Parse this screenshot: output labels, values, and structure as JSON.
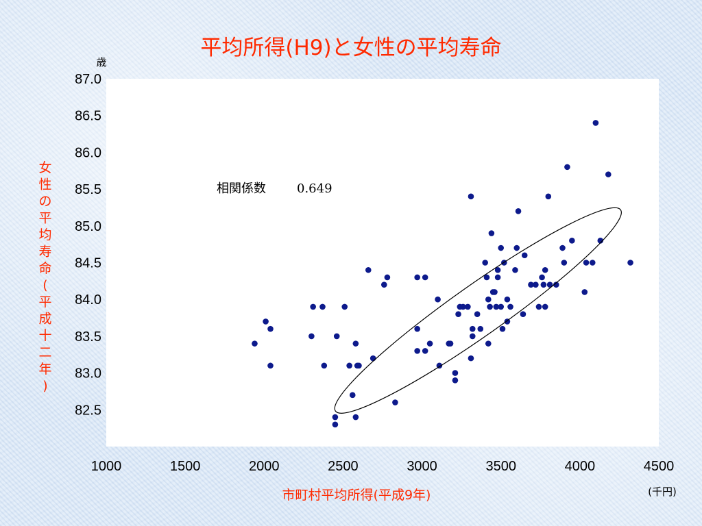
{
  "chart_data": {
    "type": "scatter",
    "title": "平均所得(H9)と女性の平均寿命",
    "xlabel": "市町村平均所得(平成9年)",
    "ylabel": "女性の平均寿命(平成十二年)",
    "x_unit": "(千円)",
    "y_unit": "歳",
    "xlim": [
      1000,
      4500
    ],
    "ylim": [
      82.0,
      87.0
    ],
    "xticks": [
      "1000",
      "1500",
      "2000",
      "2500",
      "3000",
      "3500",
      "4000",
      "4500"
    ],
    "yticks": [
      "82.5",
      "83.0",
      "83.5",
      "84.0",
      "84.5",
      "85.0",
      "85.5",
      "86.0",
      "86.5",
      "87.0"
    ],
    "grid": false,
    "marker_color": "#0d1a8c",
    "annotation": {
      "label": "相関係数",
      "value": "0.649"
    },
    "highlight_ellipse": {
      "from": [
        2530,
        82.6
      ],
      "to": [
        4180,
        85.1
      ]
    },
    "points": [
      [
        1940,
        83.4
      ],
      [
        2010,
        83.7
      ],
      [
        2040,
        83.6
      ],
      [
        2040,
        83.1
      ],
      [
        2300,
        83.5
      ],
      [
        2310,
        83.9
      ],
      [
        2370,
        83.9
      ],
      [
        2380,
        83.1
      ],
      [
        2450,
        82.4
      ],
      [
        2450,
        82.3
      ],
      [
        2460,
        83.5
      ],
      [
        2510,
        83.9
      ],
      [
        2540,
        83.1
      ],
      [
        2560,
        82.7
      ],
      [
        2580,
        82.4
      ],
      [
        2580,
        83.4
      ],
      [
        2590,
        83.1
      ],
      [
        2600,
        83.1
      ],
      [
        2660,
        84.4
      ],
      [
        2690,
        83.2
      ],
      [
        2760,
        84.2
      ],
      [
        2780,
        84.3
      ],
      [
        2830,
        82.6
      ],
      [
        2970,
        84.3
      ],
      [
        2970,
        83.6
      ],
      [
        2970,
        83.3
      ],
      [
        3020,
        84.3
      ],
      [
        3020,
        83.3
      ],
      [
        3050,
        83.4
      ],
      [
        3100,
        84.0
      ],
      [
        3110,
        83.1
      ],
      [
        3170,
        83.4
      ],
      [
        3180,
        83.4
      ],
      [
        3210,
        83.0
      ],
      [
        3210,
        82.9
      ],
      [
        3230,
        83.8
      ],
      [
        3240,
        83.9
      ],
      [
        3260,
        83.9
      ],
      [
        3290,
        83.9
      ],
      [
        3310,
        83.2
      ],
      [
        3310,
        85.4
      ],
      [
        3320,
        83.6
      ],
      [
        3320,
        83.5
      ],
      [
        3350,
        83.8
      ],
      [
        3370,
        83.6
      ],
      [
        3400,
        84.5
      ],
      [
        3410,
        84.3
      ],
      [
        3420,
        84.0
      ],
      [
        3420,
        83.4
      ],
      [
        3430,
        83.9
      ],
      [
        3440,
        84.9
      ],
      [
        3450,
        84.1
      ],
      [
        3460,
        84.1
      ],
      [
        3470,
        83.9
      ],
      [
        3480,
        84.3
      ],
      [
        3480,
        84.4
      ],
      [
        3500,
        84.7
      ],
      [
        3500,
        83.9
      ],
      [
        3510,
        83.6
      ],
      [
        3520,
        84.5
      ],
      [
        3540,
        84.0
      ],
      [
        3540,
        83.7
      ],
      [
        3560,
        83.9
      ],
      [
        3590,
        84.4
      ],
      [
        3600,
        84.7
      ],
      [
        3610,
        85.2
      ],
      [
        3640,
        83.8
      ],
      [
        3650,
        84.6
      ],
      [
        3690,
        84.2
      ],
      [
        3720,
        84.2
      ],
      [
        3740,
        83.9
      ],
      [
        3760,
        84.3
      ],
      [
        3770,
        84.2
      ],
      [
        3780,
        84.4
      ],
      [
        3780,
        83.9
      ],
      [
        3800,
        85.4
      ],
      [
        3810,
        84.2
      ],
      [
        3850,
        84.2
      ],
      [
        3890,
        84.7
      ],
      [
        3900,
        84.5
      ],
      [
        3920,
        85.8
      ],
      [
        3950,
        84.8
      ],
      [
        4030,
        84.1
      ],
      [
        4040,
        84.5
      ],
      [
        4080,
        84.5
      ],
      [
        4100,
        86.4
      ],
      [
        4130,
        84.8
      ],
      [
        4180,
        85.7
      ],
      [
        4320,
        84.5
      ]
    ]
  }
}
